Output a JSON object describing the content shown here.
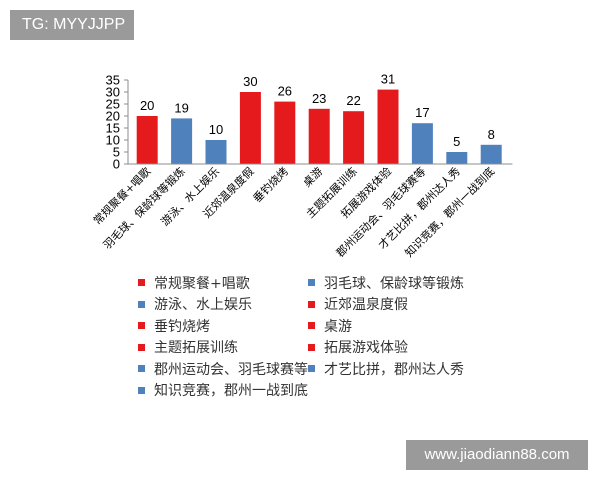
{
  "watermark_top": "TG: MYYJJPP",
  "watermark_bottom": "www.jiaodiann88.com",
  "colors": {
    "red": "#e41a1c",
    "blue": "#4f81bd"
  },
  "chart_data": {
    "type": "bar",
    "title": "",
    "xlabel": "",
    "ylabel": "",
    "ylim": [
      0,
      35
    ],
    "yticks": [
      0,
      5,
      10,
      15,
      20,
      25,
      30,
      35
    ],
    "grid": false,
    "legend_position": "bottom",
    "categories": [
      "常规聚餐+唱歌",
      "羽毛球、保龄球等锻炼",
      "游泳、水上娱乐",
      "近郊温泉度假",
      "垂钓烧烤",
      "桌游",
      "主题拓展训练",
      "拓展游戏体验",
      "郡州运动会、羽毛球赛等",
      "才艺比拼，郡州达人秀",
      "知识竞赛，郡州一战到底"
    ],
    "values": [
      20,
      19,
      10,
      30,
      26,
      23,
      22,
      31,
      17,
      5,
      8
    ],
    "bar_colors": [
      "red",
      "blue",
      "blue",
      "red",
      "red",
      "red",
      "red",
      "red",
      "blue",
      "blue",
      "blue"
    ]
  }
}
